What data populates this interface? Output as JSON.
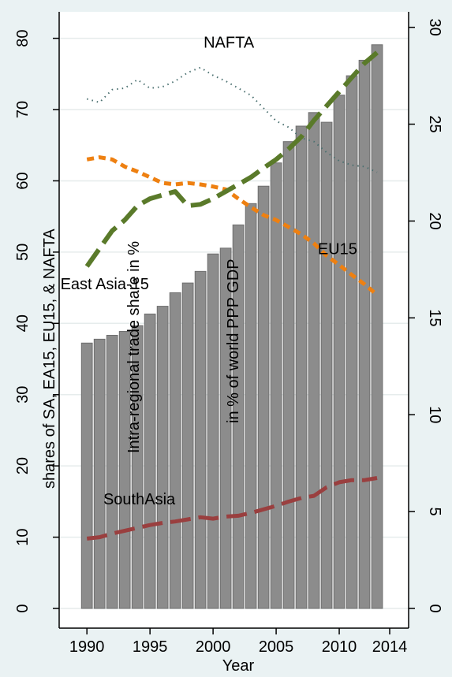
{
  "chart_data": {
    "type": "bar",
    "title": "",
    "xlabel": "Year",
    "ylabel_left": "shares of SA, EA15, EU15, & NAFTA",
    "ylabel_inner": "Intra-regional trade share in %",
    "ylabel_right": "in % of world PPP GDP",
    "x_ticks": [
      1990,
      1995,
      2000,
      2005,
      2010,
      2014
    ],
    "y_left_ticks": [
      0,
      10,
      20,
      30,
      40,
      50,
      60,
      70,
      80
    ],
    "y_right_ticks": [
      0,
      5,
      10,
      15,
      20,
      25,
      30
    ],
    "xlim": [
      1987.8,
      2015.5
    ],
    "y_left_lim": [
      0,
      82.5
    ],
    "y_right_lim": [
      0,
      30.8
    ],
    "grid": true,
    "bars": {
      "name": "East Asia-15",
      "axis": "right",
      "color": "#8c8c8c",
      "x": [
        1990,
        1991,
        1992,
        1993,
        1994,
        1995,
        1996,
        1997,
        1998,
        1999,
        2000,
        2001,
        2002,
        2003,
        2004,
        2005,
        2006,
        2007,
        2008,
        2009,
        2010,
        2011,
        2012,
        2013
      ],
      "values": [
        13.7,
        13.9,
        14.1,
        14.3,
        14.6,
        15.2,
        15.6,
        16.3,
        16.8,
        17.4,
        18.3,
        18.6,
        19.8,
        20.9,
        21.8,
        23.0,
        24.1,
        24.9,
        25.6,
        25.1,
        26.5,
        27.5,
        28.3,
        29.1
      ]
    },
    "series": [
      {
        "name": "NAFTA",
        "axis": "left",
        "color": "#4a7070",
        "dash": "1.5,5",
        "width": 2,
        "x": [
          1990,
          1991,
          1992,
          1993,
          1994,
          1995,
          1996,
          1997,
          1998,
          1999,
          2000,
          2001,
          2002,
          2003,
          2004,
          2005,
          2006,
          2007,
          2008,
          2009,
          2010,
          2011,
          2012,
          2013
        ],
        "values": [
          71.5,
          71.0,
          72.8,
          73.0,
          74.2,
          73.0,
          73.2,
          74.0,
          75.2,
          75.9,
          74.8,
          74.0,
          73.0,
          72.0,
          70.2,
          68.4,
          67.5,
          66.0,
          65.5,
          64.0,
          62.8,
          62.2,
          62.0,
          61.2
        ]
      },
      {
        "name": "EU15",
        "axis": "left",
        "color": "#ee8011",
        "dash": "9,6",
        "width": 5,
        "x": [
          1990,
          1991,
          1992,
          1993,
          1994,
          1995,
          1996,
          1997,
          1998,
          1999,
          2000,
          2001,
          2002,
          2003,
          2004,
          2005,
          2006,
          2007,
          2008,
          2009,
          2010,
          2011,
          2012,
          2013
        ],
        "values": [
          63.0,
          63.3,
          63.0,
          62.0,
          61.3,
          60.5,
          59.7,
          59.5,
          59.7,
          59.5,
          59.2,
          58.8,
          57.5,
          56.3,
          55.2,
          54.5,
          53.5,
          52.5,
          51.2,
          49.5,
          48.2,
          46.8,
          45.5,
          44.0
        ]
      },
      {
        "name": "East Asia-15",
        "axis": "left",
        "color": "#5a7a2a",
        "dash": "26,10",
        "width": 6,
        "x": [
          1990,
          1991,
          1992,
          1993,
          1994,
          1995,
          1996,
          1997,
          1998,
          1999,
          2000,
          2001,
          2002,
          2003,
          2004,
          2005,
          2006,
          2007,
          2008,
          2009,
          2010,
          2011,
          2012,
          2013
        ],
        "values": [
          48.0,
          50.5,
          53.0,
          54.5,
          56.5,
          57.5,
          58.0,
          58.5,
          56.5,
          56.7,
          57.5,
          58.5,
          59.5,
          60.5,
          61.8,
          63.0,
          64.5,
          66.2,
          68.5,
          70.5,
          72.5,
          74.5,
          76.5,
          78.0
        ]
      },
      {
        "name": "SouthAsia",
        "axis": "left",
        "color": "#9a3f3f",
        "dash": "26,10",
        "width": 5,
        "x": [
          1990,
          1991,
          1992,
          1993,
          1994,
          1995,
          1996,
          1997,
          1998,
          1999,
          2000,
          2001,
          2002,
          2003,
          2004,
          2005,
          2006,
          2007,
          2008,
          2009,
          2010,
          2011,
          2012,
          2013
        ],
        "values": [
          9.8,
          10.0,
          10.5,
          10.9,
          11.3,
          11.7,
          12.0,
          12.2,
          12.5,
          12.8,
          12.6,
          12.9,
          13.0,
          13.4,
          13.9,
          14.4,
          15.0,
          15.5,
          15.8,
          17.0,
          17.7,
          18.0,
          18.0,
          18.3
        ]
      }
    ],
    "annotations": [
      {
        "text": "NAFTA",
        "x": 1999.5,
        "y": 78.7,
        "axis": "left",
        "anchor": "start",
        "dx": -4
      },
      {
        "text": "EU15",
        "x": 2008.3,
        "y": 49.7,
        "axis": "left",
        "anchor": "start",
        "dx": 0
      },
      {
        "text": "East Asia-15",
        "x": 1987.9,
        "y": 44.8,
        "axis": "left",
        "anchor": "start",
        "dx": 0
      },
      {
        "text": "SouthAsia",
        "x": 1991.3,
        "y": 14.6,
        "axis": "left",
        "anchor": "start",
        "dx": 0
      }
    ]
  }
}
